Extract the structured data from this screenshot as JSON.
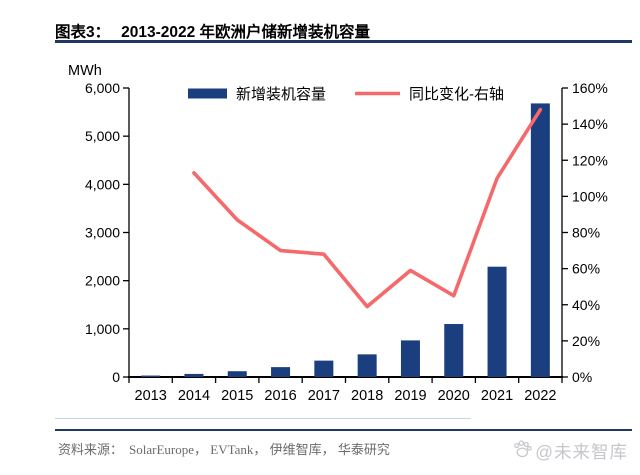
{
  "header": {
    "figure_label": "图表3：",
    "title": "2013-2022 年欧洲户储新增装机容量"
  },
  "chart_data": {
    "type": "bar",
    "title": "2013-2022 年欧洲户储新增装机容量",
    "unit_label": "MWh",
    "categories": [
      "2013",
      "2014",
      "2015",
      "2016",
      "2017",
      "2018",
      "2019",
      "2020",
      "2021",
      "2022"
    ],
    "series": [
      {
        "name": "新增装机容量",
        "kind": "bar",
        "axis": "left",
        "color": "#1B3F7E",
        "values": [
          30,
          64,
          120,
          205,
          340,
          470,
          760,
          1100,
          2290,
          5680
        ]
      },
      {
        "name": "同比变化-右轴",
        "kind": "line",
        "axis": "right",
        "color": "#F5696B",
        "values": [
          null,
          113,
          87,
          70,
          68,
          39,
          59,
          45,
          110,
          148
        ]
      }
    ],
    "left_axis": {
      "min": 0,
      "max": 6000,
      "step": 1000,
      "tick_labels": [
        "0",
        "1,000",
        "2,000",
        "3,000",
        "4,000",
        "5,000",
        "6,000"
      ]
    },
    "right_axis": {
      "min": 0,
      "max": 160,
      "step": 20,
      "tick_labels": [
        "0%",
        "20%",
        "40%",
        "60%",
        "80%",
        "100%",
        "120%",
        "140%",
        "160%"
      ]
    },
    "grid": "off",
    "legend_position": "top"
  },
  "footer": {
    "source_label": "资料来源：",
    "sources": "SolarEurope， EVTank， 伊维智库， 华泰研究",
    "watermark": "@未来智库"
  },
  "colors": {
    "bar": "#1B3F7E",
    "line": "#F5696B",
    "rule": "#1F3864",
    "source_text": "#6b6b6b",
    "watermark": "#c6c6cc"
  }
}
